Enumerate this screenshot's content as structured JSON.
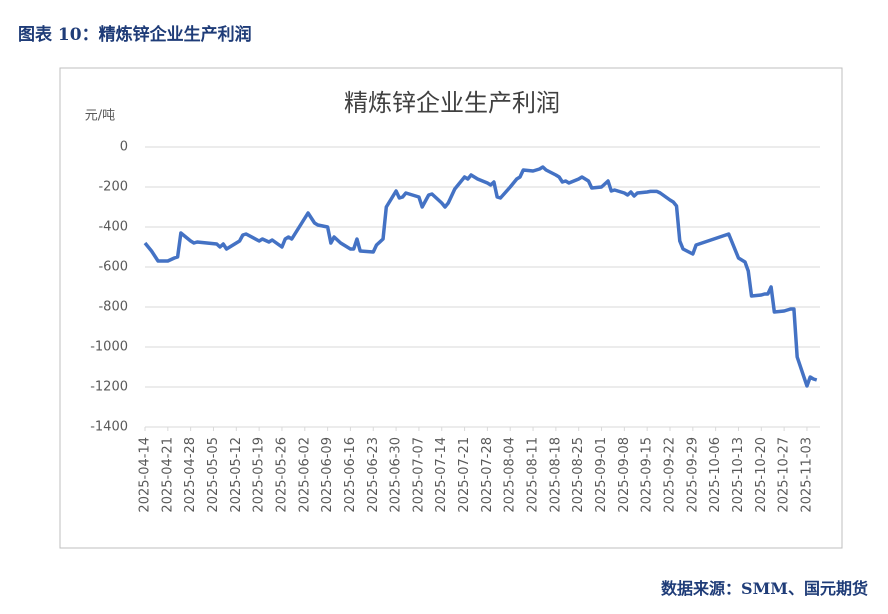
{
  "header": {
    "title": "图表 10：精炼锌企业生产利润"
  },
  "source": "数据来源：SMM、国元期货",
  "chart_data": {
    "type": "line",
    "title": "精炼锌企业生产利润",
    "y_label": "元/吨",
    "x": [
      "2025-04-14",
      "2025-04-16",
      "2025-04-18",
      "2025-04-21",
      "2025-04-23",
      "2025-04-24",
      "2025-04-25",
      "2025-04-28",
      "2025-04-29",
      "2025-04-30",
      "2025-05-06",
      "2025-05-07",
      "2025-05-08",
      "2025-05-09",
      "2025-05-12",
      "2025-05-13",
      "2025-05-14",
      "2025-05-15",
      "2025-05-19",
      "2025-05-20",
      "2025-05-22",
      "2025-05-23",
      "2025-05-26",
      "2025-05-27",
      "2025-05-28",
      "2025-05-29",
      "2025-06-03",
      "2025-06-05",
      "2025-06-06",
      "2025-06-09",
      "2025-06-10",
      "2025-06-11",
      "2025-06-13",
      "2025-06-16",
      "2025-06-17",
      "2025-06-18",
      "2025-06-19",
      "2025-06-23",
      "2025-06-24",
      "2025-06-26",
      "2025-06-27",
      "2025-06-30",
      "2025-07-01",
      "2025-07-02",
      "2025-07-03",
      "2025-07-04",
      "2025-07-07",
      "2025-07-08",
      "2025-07-09",
      "2025-07-10",
      "2025-07-11",
      "2025-07-14",
      "2025-07-15",
      "2025-07-16",
      "2025-07-18",
      "2025-07-21",
      "2025-07-22",
      "2025-07-23",
      "2025-07-24",
      "2025-07-25",
      "2025-07-28",
      "2025-07-29",
      "2025-07-30",
      "2025-07-31",
      "2025-08-01",
      "2025-08-04",
      "2025-08-06",
      "2025-08-07",
      "2025-08-08",
      "2025-08-11",
      "2025-08-12",
      "2025-08-13",
      "2025-08-14",
      "2025-08-15",
      "2025-08-18",
      "2025-08-19",
      "2025-08-20",
      "2025-08-21",
      "2025-08-22",
      "2025-08-25",
      "2025-08-26",
      "2025-08-27",
      "2025-08-28",
      "2025-08-29",
      "2025-09-01",
      "2025-09-02",
      "2025-09-03",
      "2025-09-04",
      "2025-09-05",
      "2025-09-08",
      "2025-09-09",
      "2025-09-10",
      "2025-09-11",
      "2025-09-12",
      "2025-09-15",
      "2025-09-16",
      "2025-09-17",
      "2025-09-18",
      "2025-09-19",
      "2025-09-22",
      "2025-09-23",
      "2025-09-24",
      "2025-09-25",
      "2025-09-26",
      "2025-09-29",
      "2025-09-30",
      "2025-10-10",
      "2025-10-13",
      "2025-10-14",
      "2025-10-15",
      "2025-10-16",
      "2025-10-17",
      "2025-10-20",
      "2025-10-21",
      "2025-10-22",
      "2025-10-23",
      "2025-10-24",
      "2025-10-27",
      "2025-10-28",
      "2025-10-29",
      "2025-10-30",
      "2025-10-31",
      "2025-11-03",
      "2025-11-04",
      "2025-11-05",
      "2025-11-06"
    ],
    "series": [
      {
        "name": "精炼锌企业生产利润",
        "color": "#4472c4",
        "values": [
          -480,
          -520,
          -570,
          -570,
          -555,
          -550,
          -430,
          -470,
          -480,
          -475,
          -485,
          -500,
          -485,
          -510,
          -480,
          -470,
          -440,
          -435,
          -470,
          -460,
          -475,
          -465,
          -500,
          -460,
          -450,
          -460,
          -330,
          -380,
          -390,
          -400,
          -480,
          -450,
          -480,
          -510,
          -510,
          -460,
          -520,
          -525,
          -490,
          -460,
          -300,
          -220,
          -255,
          -250,
          -230,
          -235,
          -250,
          -300,
          -270,
          -240,
          -235,
          -280,
          -300,
          -280,
          -210,
          -150,
          -160,
          -140,
          -150,
          -160,
          -180,
          -190,
          -175,
          -250,
          -255,
          -200,
          -160,
          -150,
          -115,
          -120,
          -115,
          -110,
          -100,
          -115,
          -140,
          -150,
          -175,
          -170,
          -180,
          -160,
          -150,
          -160,
          -170,
          -205,
          -200,
          -185,
          -170,
          -220,
          -215,
          -230,
          -240,
          -225,
          -245,
          -230,
          -225,
          -222,
          -222,
          -222,
          -230,
          -265,
          -275,
          -295,
          -470,
          -510,
          -535,
          -490,
          -435,
          -555,
          -565,
          -575,
          -620,
          -745,
          -740,
          -735,
          -735,
          -700,
          -825,
          -820,
          -815,
          -810,
          -810,
          -1050,
          -1195,
          -1150,
          -1160,
          -1165
        ]
      }
    ],
    "xlim": [
      "2025-04-14",
      "2025-11-07"
    ],
    "xticks": [
      "2025-04-14",
      "2025-04-21",
      "2025-04-28",
      "2025-05-05",
      "2025-05-12",
      "2025-05-19",
      "2025-05-26",
      "2025-06-02",
      "2025-06-09",
      "2025-06-16",
      "2025-06-23",
      "2025-06-30",
      "2025-07-07",
      "2025-07-14",
      "2025-07-21",
      "2025-07-28",
      "2025-08-04",
      "2025-08-11",
      "2025-08-18",
      "2025-08-25",
      "2025-09-01",
      "2025-09-08",
      "2025-09-15",
      "2025-09-22",
      "2025-09-29",
      "2025-10-06",
      "2025-10-13",
      "2025-10-20",
      "2025-10-27",
      "2025-11-03"
    ],
    "ylim": [
      -1400,
      0
    ],
    "yticks": [
      0,
      -200,
      -400,
      -600,
      -800,
      -1000,
      -1200,
      -1400
    ],
    "grid": true
  }
}
